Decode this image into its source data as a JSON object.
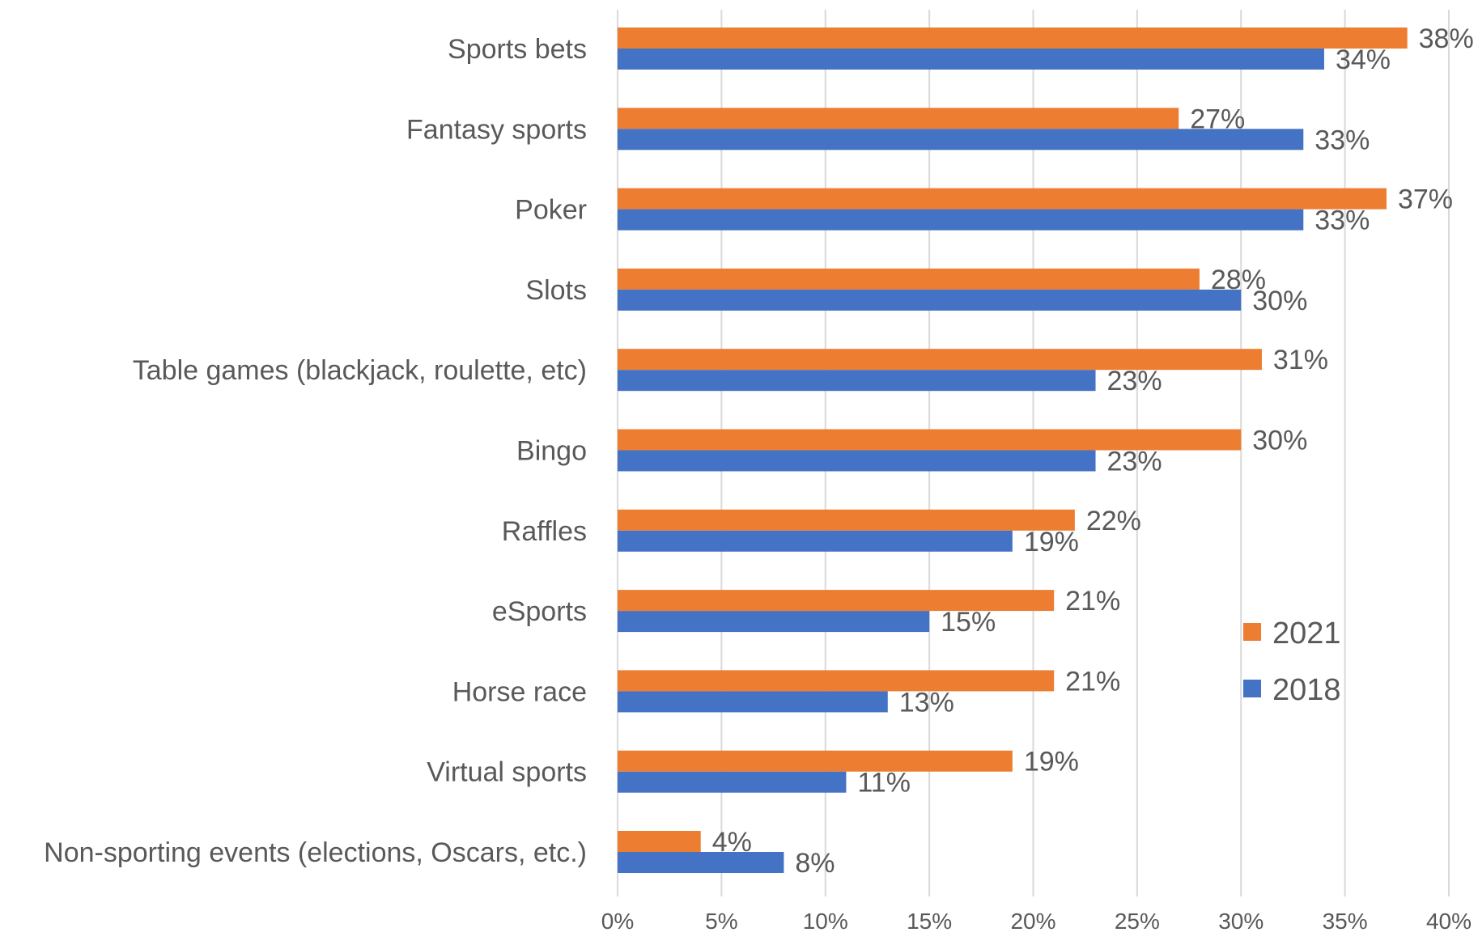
{
  "chart_data": {
    "type": "bar",
    "orientation": "horizontal",
    "categories": [
      "Sports bets",
      "Fantasy sports",
      "Poker",
      "Slots",
      "Table games (blackjack, roulette, etc)",
      "Bingo",
      "Raffles",
      "eSports",
      "Horse race",
      "Virtual sports",
      "Non-sporting events (elections, Oscars, etc.)"
    ],
    "series": [
      {
        "name": "2021",
        "color": "#ED7D31",
        "values": [
          38,
          27,
          37,
          28,
          31,
          30,
          22,
          21,
          21,
          19,
          4
        ],
        "labels": [
          "38%",
          "27%",
          "37%",
          "28%",
          "31%",
          "30%",
          "22%",
          "21%",
          "21%",
          "19%",
          "4%"
        ]
      },
      {
        "name": "2018",
        "color": "#4472C4",
        "values": [
          34,
          33,
          33,
          30,
          23,
          23,
          19,
          15,
          13,
          11,
          8
        ],
        "labels": [
          "34%",
          "33%",
          "33%",
          "30%",
          "23%",
          "23%",
          "19%",
          "15%",
          "13%",
          "11%",
          "8%"
        ]
      }
    ],
    "xlim": [
      0,
      40
    ],
    "x_ticks": [
      0,
      5,
      10,
      15,
      20,
      25,
      30,
      35,
      40
    ],
    "x_tick_labels": [
      "0%",
      "5%",
      "10%",
      "15%",
      "20%",
      "25%",
      "30%",
      "35%",
      "40%"
    ],
    "title": "",
    "xlabel": "",
    "ylabel": "",
    "grid": "vertical",
    "legend_position": "right"
  }
}
